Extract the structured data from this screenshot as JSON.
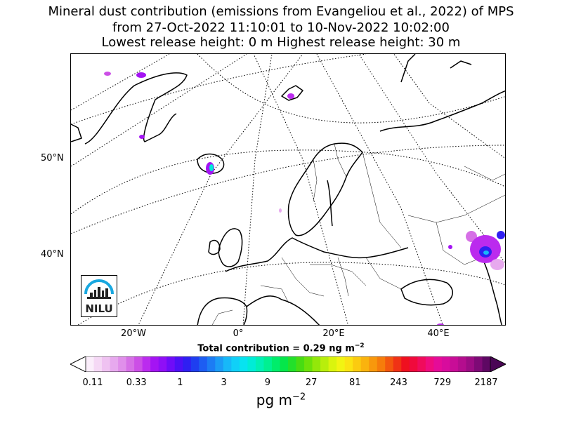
{
  "title": {
    "line1": "Mineral dust contribution (emissions from Evangeliou et al., 2022) of MPS",
    "line2": "from 27-Oct-2022 11:10:01 to 10-Nov-2022 10:02:00",
    "line3": "Lowest release height: 0 m      Highest release height: 30 m"
  },
  "map": {
    "lat_labels": [
      "50°N",
      "40°N"
    ],
    "lon_labels": [
      "20°W",
      "0°",
      "20°E",
      "40°E"
    ],
    "total_contribution": "Total contribution = 0.29 ng m",
    "total_exponent": "−2",
    "logo_text": "NILU"
  },
  "colorbar": {
    "ticks": [
      "0.11",
      "0.33",
      "1",
      "3",
      "9",
      "27",
      "81",
      "243",
      "729",
      "2187"
    ],
    "units": "pg m",
    "units_exponent": "−2",
    "colors": [
      "#fbeefb",
      "#f5d8f5",
      "#efc2f1",
      "#e7a9ee",
      "#e08fea",
      "#d670e6",
      "#cc4fe6",
      "#bb2bee",
      "#a414f3",
      "#8f0ff6",
      "#6f0cf8",
      "#4d10f6",
      "#2f1ff2",
      "#1f3ef0",
      "#1d5df2",
      "#1c7cf4",
      "#1b9bf6",
      "#17b8f8",
      "#10d0f8",
      "#07e3f0",
      "#00ecd7",
      "#00f0b4",
      "#00f091",
      "#00ed6b",
      "#05e64a",
      "#22e02a",
      "#47dc12",
      "#6ce10a",
      "#93e70a",
      "#b8ee0c",
      "#daf40e",
      "#f2f412",
      "#fbe312",
      "#fbcb10",
      "#fab30e",
      "#f8980c",
      "#f67c0b",
      "#f3570e",
      "#f03215",
      "#ef101f",
      "#f00a3c",
      "#f00b5c",
      "#ef0c7e",
      "#e50c98",
      "#d80c9d",
      "#c80d97",
      "#b40d8e",
      "#9c0c84",
      "#7e0a76",
      "#5e0863"
    ]
  }
}
